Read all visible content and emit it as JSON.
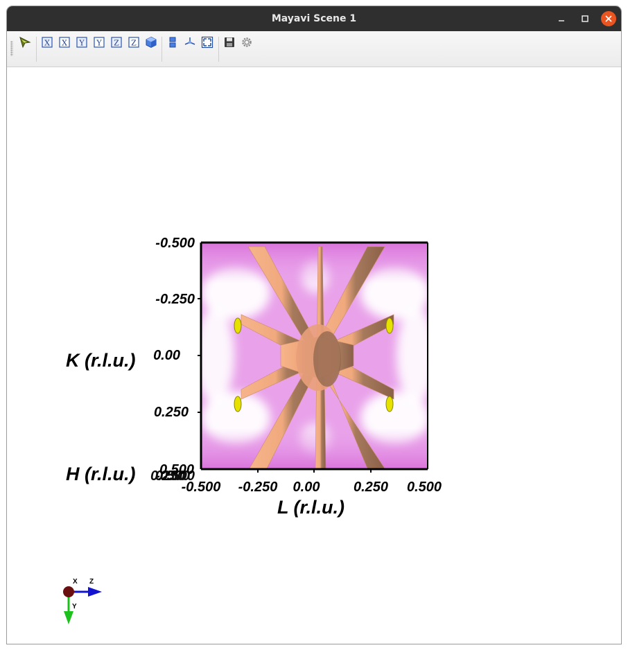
{
  "window": {
    "title": "Mayavi Scene 1",
    "controls": [
      "minimize-icon",
      "maximize-icon",
      "close-icon"
    ]
  },
  "toolbar": {
    "buttons": [
      {
        "name": "interact-button",
        "icon": "arrow-pointer-icon"
      },
      {
        "name": "view-x-positive-button",
        "icon": "x-axis-icon",
        "label": "X"
      },
      {
        "name": "view-x-negative-button",
        "icon": "x-axis-icon",
        "label": "X"
      },
      {
        "name": "view-y-positive-button",
        "icon": "y-axis-icon",
        "label": "Y"
      },
      {
        "name": "view-y-negative-button",
        "icon": "y-axis-icon",
        "label": "Y"
      },
      {
        "name": "view-z-positive-button",
        "icon": "z-axis-icon",
        "label": "Z"
      },
      {
        "name": "view-z-negative-button",
        "icon": "z-axis-icon",
        "label": "Z"
      },
      {
        "name": "isometric-view-button",
        "icon": "cube-icon"
      },
      {
        "name": "parallel-projection-button",
        "icon": "projection-icon"
      },
      {
        "name": "show-axes-button",
        "icon": "axes-icon"
      },
      {
        "name": "full-screen-button",
        "icon": "fullscreen-icon"
      },
      {
        "name": "save-button",
        "icon": "floppy-icon"
      },
      {
        "name": "configure-button",
        "icon": "gear-icon"
      }
    ]
  },
  "scene": {
    "plot": {
      "k_axis": {
        "label": "K (r.l.u.)",
        "ticks": [
          "-0.500",
          "-0.250",
          "0.00",
          "0.250",
          "0.500"
        ]
      },
      "l_axis": {
        "label": "L (r.l.u.)",
        "ticks": [
          "-0.500",
          "-0.250",
          "0.00",
          "0.250",
          "0.500"
        ]
      },
      "h_axis": {
        "label": "H (r.l.u.)",
        "ticks_overlapping": [
          "-0.500",
          "0.500",
          "0.250"
        ]
      },
      "colors": {
        "background_lavender": "#e9a2ea",
        "fog_white": "#ffffff",
        "isosurface_peach": "#f2aa7f",
        "isosurface_shadow": "#9b6f55",
        "peak_yellow": "#e7e100"
      }
    },
    "orientation_axes": {
      "x_label": "X",
      "y_label": "Y",
      "z_label": "Z",
      "colors": {
        "x": "#6a0f0f",
        "y": "#1ec01e",
        "z": "#1414d0"
      }
    }
  }
}
